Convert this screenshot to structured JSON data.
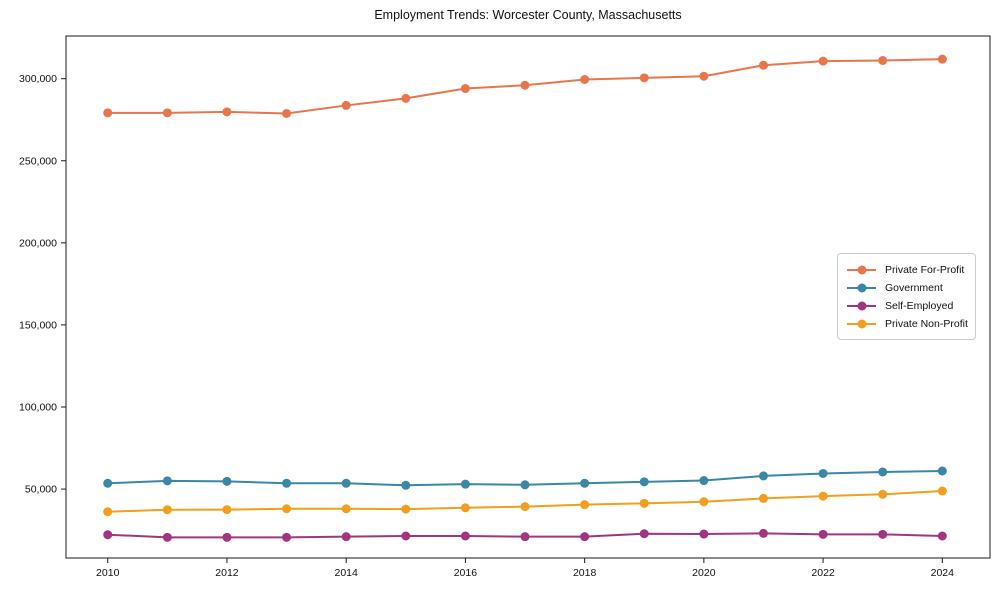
{
  "chart_data": {
    "type": "line",
    "title": "Employment Trends: Worcester County, Massachusetts",
    "x": [
      2010,
      2011,
      2012,
      2013,
      2014,
      2015,
      2016,
      2017,
      2018,
      2019,
      2020,
      2021,
      2022,
      2023,
      2024
    ],
    "series": [
      {
        "name": "Private For-Profit",
        "color": "#E8764D",
        "values": [
          279200,
          279200,
          279800,
          278800,
          283700,
          288000,
          294000,
          296000,
          299500,
          300500,
          301500,
          308200,
          310700,
          311100,
          311900
        ]
      },
      {
        "name": "Government",
        "color": "#3A87A8",
        "values": [
          53500,
          55000,
          54700,
          53500,
          53500,
          52300,
          53000,
          52600,
          53500,
          54400,
          55200,
          58000,
          59500,
          60400,
          61000
        ]
      },
      {
        "name": "Self-Employed",
        "color": "#A23582",
        "values": [
          22200,
          20600,
          20600,
          20600,
          21000,
          21400,
          21400,
          21000,
          21000,
          22800,
          22600,
          23000,
          22400,
          22400,
          21400
        ]
      },
      {
        "name": "Private Non-Profit",
        "color": "#F0A01E",
        "values": [
          36200,
          37400,
          37500,
          38000,
          38000,
          37800,
          38600,
          39300,
          40500,
          41300,
          42300,
          44300,
          45700,
          46800,
          48800
        ]
      }
    ],
    "xticks": [
      2010,
      2012,
      2014,
      2016,
      2018,
      2020,
      2022,
      2024
    ],
    "yticks": [
      50000,
      100000,
      150000,
      200000,
      250000,
      300000
    ],
    "xlim": [
      2009.3,
      2024.8
    ],
    "ylim": [
      8000,
      326000
    ],
    "xlabel": "",
    "ylabel": "",
    "grid": false,
    "legend_position": "center-right",
    "marker": "circle",
    "marker_radius": 4.5,
    "line_width": 2
  }
}
